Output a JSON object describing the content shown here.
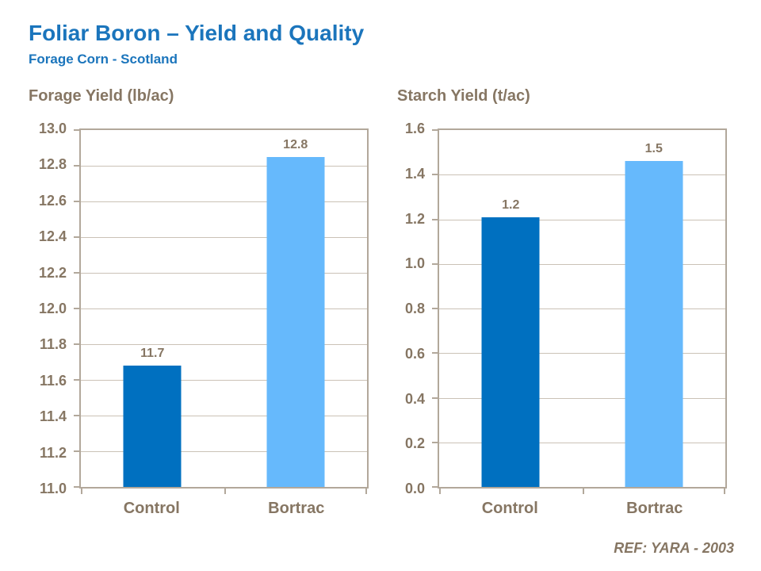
{
  "page": {
    "title": "Foliar Boron – Yield and Quality",
    "subtitle": "Forage Corn - Scotland",
    "footer": "REF: YARA - 2003"
  },
  "colors": {
    "title_blue": "#1B75BC",
    "text_brown": "#867663",
    "axis_border": "#B2A89B",
    "gridline": "#CBC2B6",
    "bar_control": "#0070C0",
    "bar_bortrac": "#66B9FC"
  },
  "chart_data": [
    {
      "type": "bar",
      "title": "Forage Yield (lb/ac)",
      "categories": [
        "Control",
        "Bortrac"
      ],
      "values": [
        11.7,
        12.8
      ],
      "value_labels": [
        "11.7",
        "12.8"
      ],
      "plotted_bar_tops": [
        11.68,
        12.85
      ],
      "bar_colors": [
        "#0070C0",
        "#66B9FC"
      ],
      "ylim": [
        11.0,
        13.0
      ],
      "ytick_step": 0.2,
      "grid": true,
      "legend": false
    },
    {
      "type": "bar",
      "title": "Starch Yield (t/ac)",
      "categories": [
        "Control",
        "Bortrac"
      ],
      "values": [
        1.2,
        1.5
      ],
      "value_labels": [
        "1.2",
        "1.5"
      ],
      "plotted_bar_tops": [
        1.21,
        1.46
      ],
      "bar_colors": [
        "#0070C0",
        "#66B9FC"
      ],
      "ylim": [
        0.0,
        1.6
      ],
      "ytick_step": 0.2,
      "grid": true,
      "legend": false
    }
  ]
}
